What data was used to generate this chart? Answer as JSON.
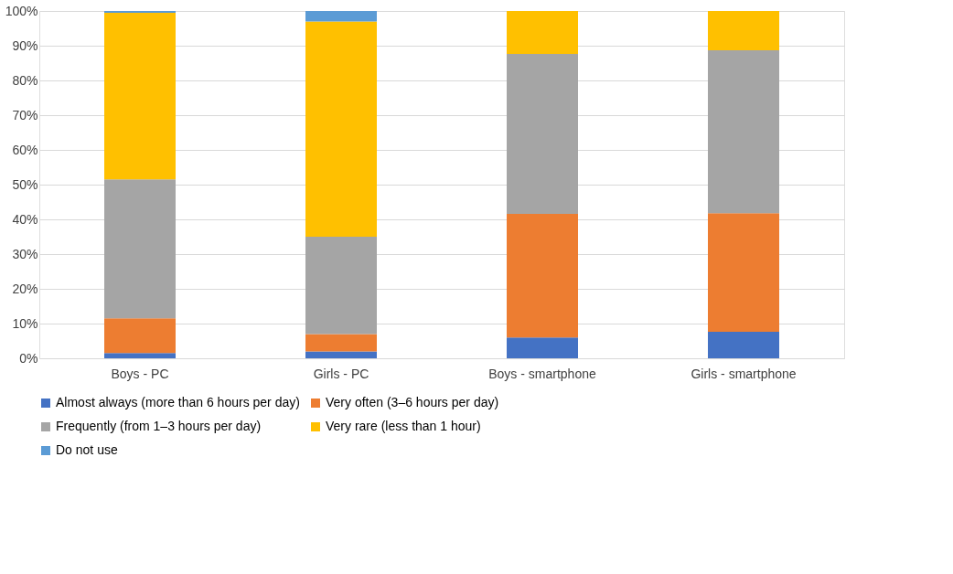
{
  "chart_data": {
    "type": "bar",
    "stacked": true,
    "categories": [
      "Boys - PC",
      "Girls - PC",
      "Boys - smartphone",
      "Girls - smartphone"
    ],
    "series": [
      {
        "name": "Almost always (more than 6 hours per day)",
        "color": "#4472c4",
        "values": [
          1.5,
          2,
          6,
          7.6
        ]
      },
      {
        "name": "Very often (3–6 hours per day)",
        "color": "#ed7d31",
        "values": [
          10,
          5,
          35.6,
          34.2
        ]
      },
      {
        "name": "Frequently (from 1–3 hours per day)",
        "color": "#a5a5a5",
        "values": [
          40,
          28,
          46,
          46.9
        ]
      },
      {
        "name": "Very rare (less than 1 hour)",
        "color": "#ffc000",
        "values": [
          48,
          62,
          12.4,
          11.3
        ]
      },
      {
        "name": "Do not use",
        "color": "#5b9bd5",
        "values": [
          0.5,
          3,
          0,
          0
        ]
      }
    ],
    "ylim": [
      0,
      100
    ],
    "yticks": [
      {
        "value": 0,
        "label": "0%"
      },
      {
        "value": 10,
        "label": "10%"
      },
      {
        "value": 20,
        "label": "20%"
      },
      {
        "value": 30,
        "label": "30%"
      },
      {
        "value": 40,
        "label": "40%"
      },
      {
        "value": 50,
        "label": "50%"
      },
      {
        "value": 60,
        "label": "60%"
      },
      {
        "value": 70,
        "label": "70%"
      },
      {
        "value": 80,
        "label": "80%"
      },
      {
        "value": 90,
        "label": "90%"
      },
      {
        "value": 100,
        "label": "100%"
      }
    ],
    "grid": "y",
    "legend": "bottom"
  }
}
